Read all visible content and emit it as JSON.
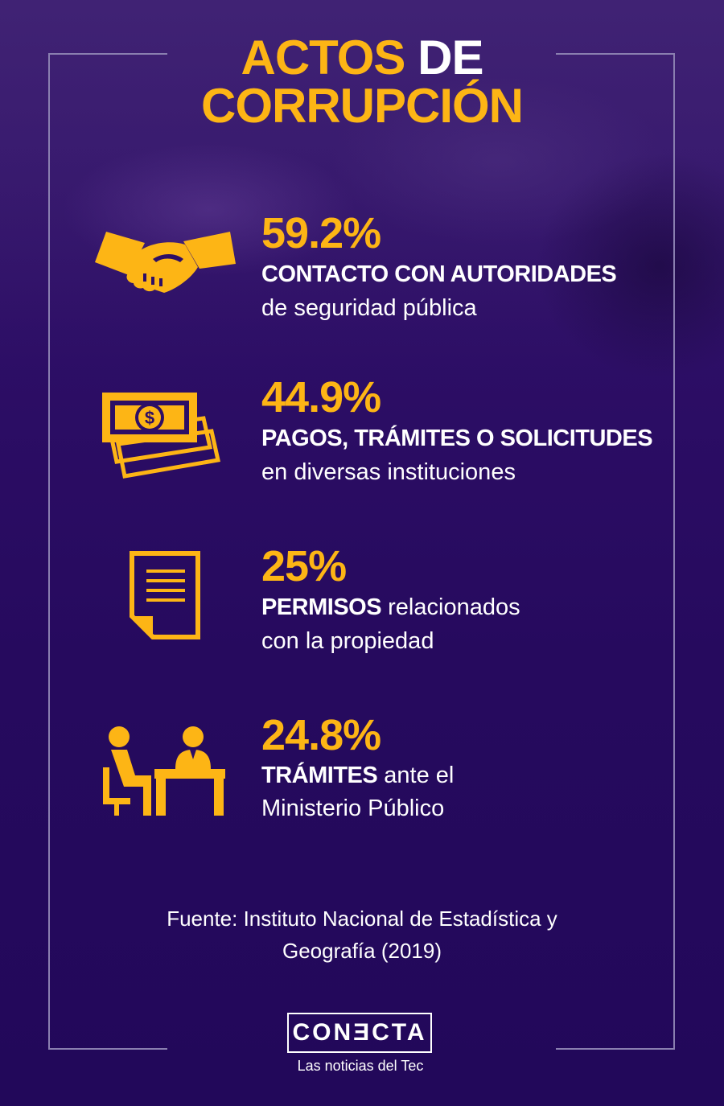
{
  "title": {
    "part1": "ACTOS",
    "part2": "DE",
    "line2": "CORRUPCIÓN"
  },
  "colors": {
    "accent": "#fdb515",
    "background": "#2d0e66",
    "text": "#ffffff"
  },
  "stats": [
    {
      "icon": "handshake-icon",
      "percent": "59.2%",
      "bold": "CONTACTO CON AUTORIDADES",
      "rest": "",
      "line2": "de seguridad pública"
    },
    {
      "icon": "money-bills-icon",
      "percent": "44.9%",
      "bold": "PAGOS, TRÁMITES O SOLICITUDES",
      "rest": "",
      "line2": "en diversas instituciones"
    },
    {
      "icon": "document-icon",
      "percent": "25%",
      "bold": "PERMISOS",
      "rest": " relacionados",
      "line2": "con la propiedad"
    },
    {
      "icon": "office-desk-icon",
      "percent": "24.8%",
      "bold": "TRÁMITES",
      "rest": " ante el",
      "line2": "Ministerio Público"
    }
  ],
  "source": {
    "line1": "Fuente: Instituto Nacional de Estadística y",
    "line2": "Geografía (2019)"
  },
  "logo": {
    "name": "CONƎCTA",
    "tagline": "Las noticias del Tec"
  }
}
